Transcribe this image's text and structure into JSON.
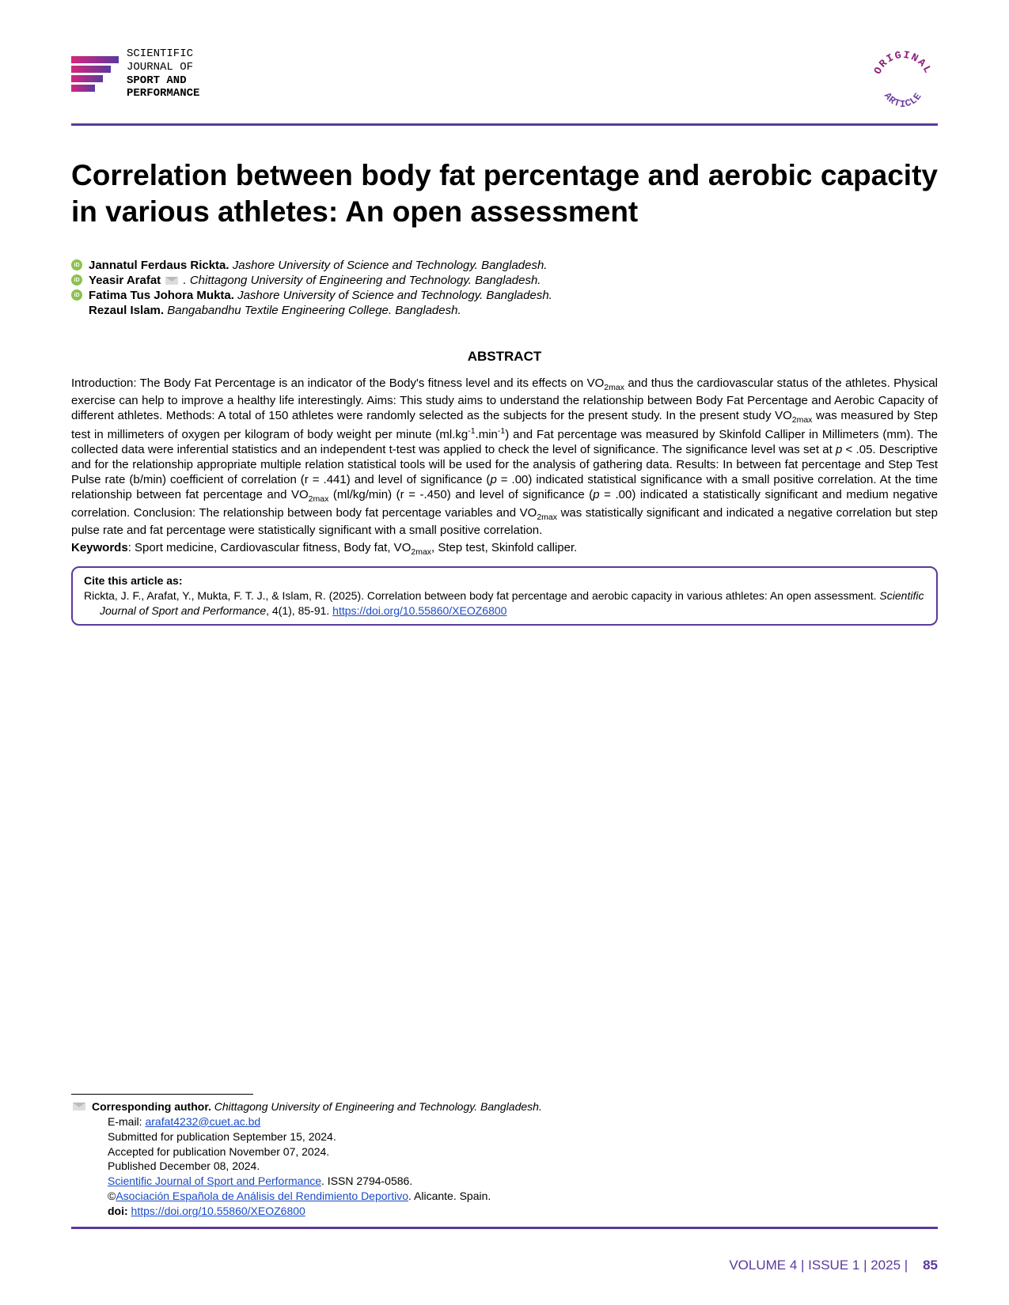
{
  "header": {
    "journal_line1": "SCIENTIFIC",
    "journal_line2": "JOURNAL OF",
    "journal_line3": "SPORT AND",
    "journal_line4": "PERFORMANCE",
    "badge_top": "ORIGINAL",
    "badge_bottom": "ARTICLE",
    "logo_gradient_start": "#d4267d",
    "logo_gradient_end": "#5b3a9c"
  },
  "title": "Correlation between body fat percentage and aerobic capacity in various athletes: An open assessment",
  "authors": [
    {
      "name": "Jannatul Ferdaus Rickta.",
      "affil": "Jashore University of Science and Technology. Bangladesh.",
      "orcid": true,
      "mail": false
    },
    {
      "name": "Yeasir Arafat",
      "affil": ". Chittagong University of Engineering and Technology. Bangladesh.",
      "orcid": true,
      "mail": true
    },
    {
      "name": "Fatima Tus Johora Mukta.",
      "affil": "Jashore University of Science and Technology. Bangladesh.",
      "orcid": true,
      "mail": false
    },
    {
      "name": "Rezaul Islam.",
      "affil": "Bangabandhu Textile Engineering College. Bangladesh.",
      "orcid": false,
      "mail": false
    }
  ],
  "abstract": {
    "heading": "ABSTRACT",
    "body_html": "Introduction: The Body Fat Percentage is an indicator of the Body's fitness level and its effects on VO<sub>2max</sub> and thus the cardiovascular status of the athletes. Physical exercise can help to improve a healthy life interestingly. Aims: This study aims to understand the relationship between Body Fat Percentage and Aerobic Capacity of different athletes. Methods: A total of 150 athletes were randomly selected as the subjects for the present study. In the present study VO<sub>2max</sub> was measured by Step test in millimeters of oxygen per kilogram of body weight per minute (ml.kg<sup>-1</sup>.min<sup>-1</sup>) and Fat percentage was measured by Skinfold Calliper in Millimeters (mm). The collected data were inferential statistics and an independent t-test was applied to check the level of significance. The significance level was set at <i>p</i> &lt; .05. Descriptive and for the relationship appropriate multiple relation statistical tools will be used for the analysis of gathering data. Results: In between fat percentage and Step Test Pulse rate (b/min) coefficient of correlation (r = .441) and level of significance (<i>p</i> = .00) indicated statistical significance with a small positive correlation. At the time relationship between fat percentage and VO<sub>2max</sub> (ml/kg/min) (r = -.450) and level of significance (<i>p</i> = .00) indicated a statistically significant and medium negative correlation. Conclusion: The relationship between body fat percentage variables and VO<sub>2max</sub> was statistically significant and indicated a negative correlation but step pulse rate and fat percentage were statistically significant with a small positive correlation.",
    "keywords_label": "Keywords",
    "keywords_text_html": ": Sport medicine, Cardiovascular fitness, Body fat, VO<sub>2max</sub>, Step test, Skinfold calliper."
  },
  "citation": {
    "heading": "Cite this article as:",
    "text_prefix": "Rickta, J. F., Arafat, Y., Mukta, F. T. J., & Islam, R. (2025). Correlation between body fat percentage and aerobic capacity in various athletes: An open assessment. ",
    "journal_italic": "Scientific Journal of Sport and Performance",
    "text_middle": ", 4(1), 85-91. ",
    "doi_link": "https://doi.org/10.55860/XEOZ6800"
  },
  "footer": {
    "corresponding_label": "Corresponding author.",
    "corresponding_affil": "Chittagong University of Engineering and Technology. Bangladesh.",
    "email_label": "E-mail: ",
    "email": "arafat4232@cuet.ac.bd",
    "submitted": "Submitted for publication September 15, 2024.",
    "accepted": "Accepted for publication November 07, 2024.",
    "published": "Published December 08, 2024.",
    "journal_link": "Scientific Journal of Sport and Performance",
    "issn": ". ISSN 2794-0586.",
    "copyright_prefix": "©",
    "association_link": "Asociación Española de Análisis del Rendimiento Deportivo",
    "association_suffix": ". Alicante. Spain.",
    "doi_label": "doi: ",
    "doi_link": "https://doi.org/10.55860/XEOZ6800"
  },
  "page": {
    "volume_text": "VOLUME 4 | ISSUE 1 | 2025 |",
    "number": "85"
  },
  "colors": {
    "rule": "#5b3a9c",
    "link": "#1a4bc7",
    "badge_top": "#8b1f7a",
    "badge_bottom": "#6d3fa3"
  }
}
